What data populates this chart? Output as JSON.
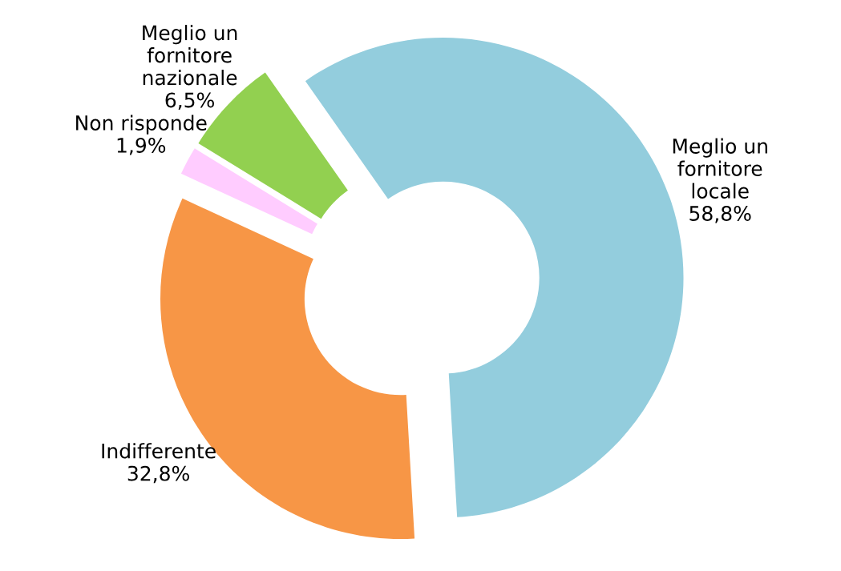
{
  "chart_data": {
    "type": "donut",
    "categories": [
      "Meglio un fornitore locale",
      "Indifferente",
      "Non risponde",
      "Meglio un fornitore nazionale"
    ],
    "values": [
      58.8,
      32.8,
      1.9,
      6.5
    ],
    "value_labels": [
      "58,8%",
      "32,8%",
      "1,9%",
      "6,5%"
    ],
    "colors": [
      "#93cddd",
      "#f79646",
      "#ffccff",
      "#92d050"
    ],
    "legend": false
  }
}
